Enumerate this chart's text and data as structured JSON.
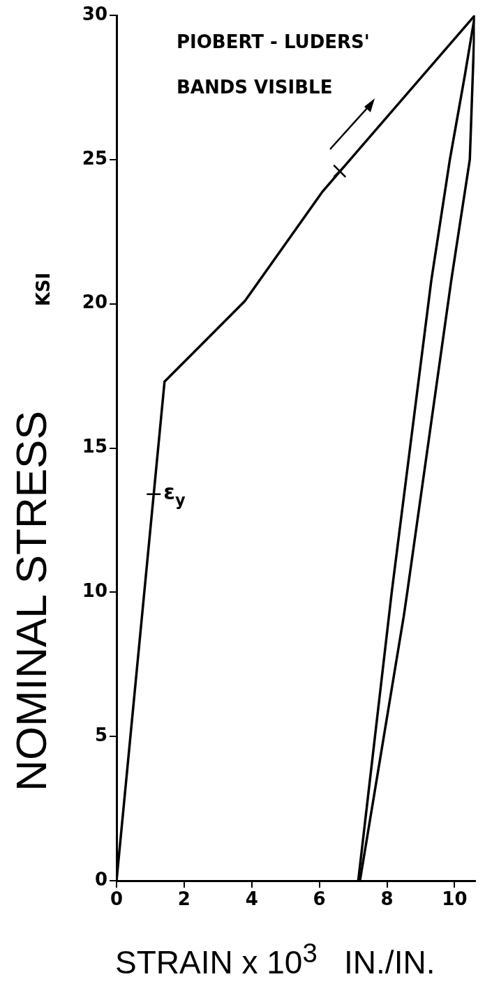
{
  "chart_data": {
    "type": "line",
    "xlabel": "STRAIN x 10$^{3}$   IN./IN.",
    "ylabel": "NOMINAL STRESS",
    "xlim": [
      0,
      10.6
    ],
    "xticks": [
      0,
      2,
      4,
      6,
      8,
      10
    ],
    "ylim": [
      0,
      30
    ],
    "yticks": [
      0,
      5,
      10,
      15,
      20,
      25,
      30
    ],
    "legend": false,
    "marker": "none",
    "line_style": "solid",
    "series": [
      {
        "color": "#000000",
        "x": [
          0,
          1.42,
          3.8,
          6.1,
          10.6
        ],
        "values": [
          0,
          17.3,
          20.1,
          23.9,
          30
        ]
      },
      {
        "color": "#000000",
        "x": [
          7.15,
          8.14,
          9.31,
          9.86,
          10.3,
          10.6
        ],
        "values": [
          0,
          10,
          20.8,
          25,
          27.9,
          30
        ]
      },
      {
        "color": "#000000",
        "x": [
          7.2,
          8.5,
          8.6,
          9.9,
          10.45,
          10.6
        ],
        "values": [
          0,
          9.2,
          10,
          20.8,
          25,
          30
        ]
      },
      {
        "type": "scatter",
        "marker": "cross",
        "color": "#000000",
        "x": [
          6.6
        ],
        "values": [
          24.6
        ]
      }
    ],
    "annotations": [
      {
        "text": "ε$_{y}$",
        "x": 1.1,
        "y": 13.4
      },
      "PIOBERT - LUDERS' BANDS VISIBLE",
      "KSI"
    ]
  }
}
